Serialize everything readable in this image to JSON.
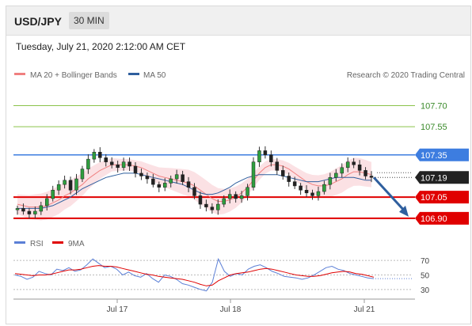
{
  "header": {
    "symbol": "USD/JPY",
    "timeframe": "30 MIN"
  },
  "datetime": "Tuesday, July 21, 2020 2:12:00 AM CET",
  "legend": [
    {
      "label": "MA 20 + Bollinger Bands",
      "color": "#f08080"
    },
    {
      "label": "MA 50",
      "color": "#2f5f9e"
    }
  ],
  "source": "Research © 2020 Trading Central",
  "rsi_legend": [
    {
      "label": "RSI",
      "color": "#5b7fd6"
    },
    {
      "label": "9MA",
      "color": "#e00000"
    }
  ],
  "colors": {
    "target_line": "#8bc34a",
    "resistance": "#3d7de0",
    "support": "#e00000",
    "last_price": "#222222",
    "forecast_arrow": "#2f5f9e",
    "band_fill": "#fadadd"
  },
  "chart_data": {
    "type": "candlestick",
    "y_range": [
      106.86,
      107.86
    ],
    "x_ticks": [
      "Jul 17",
      "Jul 18",
      "Jul 21"
    ],
    "levels": [
      {
        "label": "107.70",
        "value": 107.7,
        "kind": "target"
      },
      {
        "label": "107.55",
        "value": 107.55,
        "kind": "target"
      },
      {
        "label": "107.35",
        "value": 107.35,
        "kind": "resistance"
      },
      {
        "label": "107.19",
        "value": 107.19,
        "kind": "last"
      },
      {
        "label": "107.05",
        "value": 107.05,
        "kind": "support"
      },
      {
        "label": "106.90",
        "value": 106.9,
        "kind": "support"
      }
    ],
    "close_series": [
      106.97,
      106.95,
      106.93,
      106.95,
      106.99,
      107.04,
      107.1,
      107.14,
      107.17,
      107.1,
      107.18,
      107.25,
      107.32,
      107.37,
      107.33,
      107.3,
      107.28,
      107.26,
      107.3,
      107.27,
      107.22,
      107.2,
      107.18,
      107.14,
      107.12,
      107.15,
      107.18,
      107.21,
      107.16,
      107.12,
      107.06,
      107.0,
      106.98,
      106.96,
      107.0,
      107.04,
      107.07,
      107.04,
      107.06,
      107.12,
      107.3,
      107.38,
      107.35,
      107.3,
      107.24,
      107.2,
      107.16,
      107.13,
      107.1,
      107.08,
      107.06,
      107.09,
      107.14,
      107.19,
      107.22,
      107.26,
      107.3,
      107.28,
      107.24,
      107.2,
      107.19
    ],
    "ma20_series": [
      107.0,
      106.99,
      106.98,
      106.98,
      106.98,
      106.99,
      107.01,
      107.03,
      107.06,
      107.08,
      107.11,
      107.14,
      107.18,
      107.21,
      107.24,
      107.26,
      107.28,
      107.28,
      107.28,
      107.28,
      107.27,
      107.26,
      107.24,
      107.22,
      107.2,
      107.19,
      107.18,
      107.17,
      107.16,
      107.15,
      107.13,
      107.1,
      107.07,
      107.04,
      107.02,
      107.02,
      107.03,
      107.05,
      107.08,
      107.12,
      107.17,
      107.22,
      107.26,
      107.28,
      107.28,
      107.27,
      107.25,
      107.22,
      107.19,
      107.16,
      107.14,
      107.13,
      107.13,
      107.14,
      107.16,
      107.18,
      107.21,
      107.23,
      107.23,
      107.22,
      107.21
    ],
    "ma50_series": [
      106.97,
      106.97,
      106.97,
      106.97,
      106.97,
      106.98,
      106.99,
      107.01,
      107.03,
      107.05,
      107.08,
      107.11,
      107.13,
      107.15,
      107.17,
      107.19,
      107.2,
      107.21,
      107.22,
      107.22,
      107.22,
      107.21,
      107.2,
      107.19,
      107.18,
      107.17,
      107.16,
      107.15,
      107.14,
      107.12,
      107.1,
      107.08,
      107.07,
      107.07,
      107.08,
      107.1,
      107.12,
      107.15,
      107.17,
      107.19,
      107.2,
      107.21,
      107.21,
      107.21,
      107.21,
      107.2,
      107.19,
      107.18,
      107.17,
      107.16,
      107.16,
      107.16,
      107.17,
      107.18,
      107.19,
      107.19,
      107.19,
      107.19,
      107.18,
      107.17,
      107.17
    ],
    "rsi": {
      "levels": [
        70,
        50,
        30
      ],
      "y_range": [
        20,
        80
      ],
      "rsi_series": [
        50,
        48,
        44,
        47,
        55,
        52,
        50,
        58,
        56,
        60,
        55,
        57,
        64,
        72,
        66,
        60,
        62,
        58,
        50,
        54,
        49,
        47,
        52,
        45,
        40,
        50,
        48,
        44,
        38,
        36,
        33,
        30,
        28,
        40,
        72,
        55,
        48,
        52,
        50,
        58,
        62,
        64,
        60,
        55,
        52,
        48,
        47,
        46,
        44,
        46,
        50,
        55,
        60,
        62,
        58,
        56,
        52,
        50,
        48,
        46,
        45
      ],
      "ma_series": [
        52,
        51,
        50,
        49,
        50,
        50,
        51,
        53,
        55,
        57,
        57,
        58,
        60,
        62,
        63,
        62,
        62,
        61,
        59,
        57,
        55,
        53,
        51,
        50,
        48,
        47,
        46,
        45,
        44,
        42,
        40,
        37,
        35,
        36,
        42,
        46,
        50,
        52,
        53,
        54,
        56,
        58,
        59,
        58,
        56,
        54,
        52,
        50,
        49,
        48,
        48,
        49,
        51,
        53,
        54,
        55,
        54,
        52,
        51,
        49,
        47
      ]
    }
  },
  "axis": {
    "rsi_70": "70",
    "rsi_50": "50",
    "rsi_30": "30"
  }
}
